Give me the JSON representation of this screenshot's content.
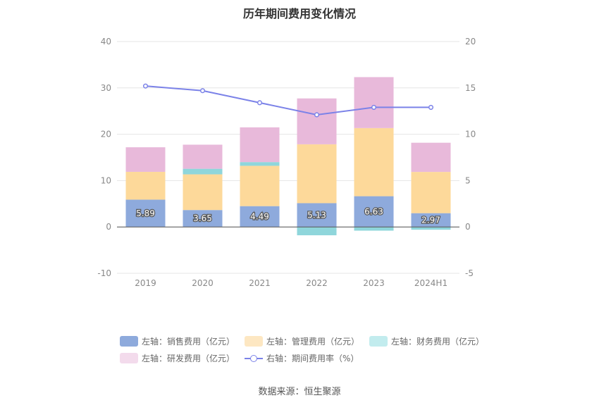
{
  "chart_data": {
    "type": "bar",
    "title": "历年期间费用变化情况",
    "categories": [
      "2019",
      "2020",
      "2021",
      "2022",
      "2023",
      "2024H1"
    ],
    "left_axis": {
      "ylim": [
        -10,
        40
      ],
      "ticks": [
        "40",
        "30",
        "20",
        "10",
        "0",
        "-10"
      ]
    },
    "right_axis": {
      "ylim": [
        -5,
        20
      ],
      "ticks": [
        "20",
        "15",
        "10",
        "5",
        "0",
        "-5"
      ]
    },
    "series": [
      {
        "name": "左轴：销售费用（亿元）",
        "axis": "left",
        "kind": "stacked-bar",
        "color": "#8eaadc",
        "values": [
          5.89,
          3.65,
          4.49,
          5.13,
          6.63,
          2.97
        ],
        "labels": [
          "5.89",
          "3.65",
          "4.49",
          "5.13",
          "6.63",
          "2.97"
        ]
      },
      {
        "name": "左轴：管理费用（亿元）",
        "axis": "left",
        "kind": "stacked-bar",
        "color": "#fdd99a",
        "values": [
          6.0,
          7.7,
          8.7,
          12.7,
          14.7,
          8.9
        ]
      },
      {
        "name": "左轴：财务费用（亿元）",
        "axis": "left",
        "kind": "stacked-bar",
        "color": "#8fd6db",
        "values": [
          0.0,
          1.2,
          0.8,
          -1.8,
          -0.8,
          -0.6
        ]
      },
      {
        "name": "左轴：研发费用（亿元）",
        "axis": "left",
        "kind": "stacked-bar",
        "color": "#e8b9da",
        "values": [
          5.3,
          5.2,
          7.5,
          9.9,
          11.0,
          6.3
        ]
      },
      {
        "name": "右轴：期间费用率（%）",
        "axis": "right",
        "kind": "line",
        "color": "#7b82e8",
        "values": [
          15.2,
          14.7,
          13.4,
          12.1,
          12.9,
          12.9
        ]
      }
    ],
    "grid": true,
    "legend_position": "bottom"
  },
  "source": "数据来源：恒生聚源"
}
